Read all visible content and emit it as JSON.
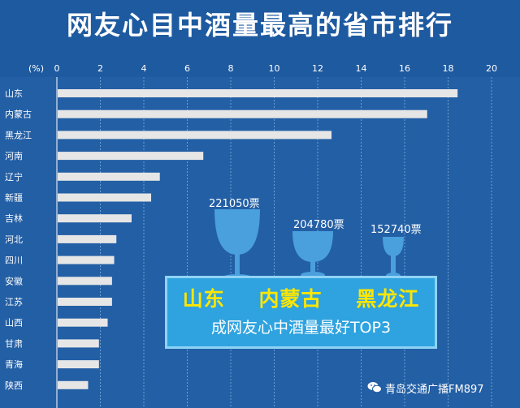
{
  "title": "网友心目中酒量最高的省市排行",
  "callout": {
    "provinces": [
      "山东",
      "内蒙古",
      "黑龙江"
    ],
    "subtitle": "成网友心中酒量最好TOP3"
  },
  "votes": [
    "221050票",
    "204780票",
    "152740票"
  ],
  "watermark": "青岛交通广播FM897",
  "colors": {
    "background": "#1e5aa0",
    "bar": "#e6e6e6",
    "callout": "#2fa3df",
    "highlight": "#ffe600",
    "glass": "#4a9fdd"
  },
  "chart_data": {
    "type": "bar",
    "orientation": "horizontal",
    "unit_label": "(%)",
    "xlim": [
      0,
      20
    ],
    "ticks": [
      0,
      2,
      4,
      6,
      8,
      10,
      12,
      14,
      16,
      18,
      20
    ],
    "grid": true,
    "categories": [
      "山东",
      "内蒙古",
      "黑龙江",
      "河南",
      "辽宁",
      "新疆",
      "吉林",
      "河北",
      "四川",
      "安徽",
      "江苏",
      "山西",
      "甘肃",
      "青海",
      "陕西"
    ],
    "values": [
      18.4,
      17.0,
      12.6,
      6.7,
      4.7,
      4.3,
      3.4,
      2.7,
      2.6,
      2.5,
      2.5,
      2.3,
      1.9,
      1.9,
      1.4
    ]
  }
}
